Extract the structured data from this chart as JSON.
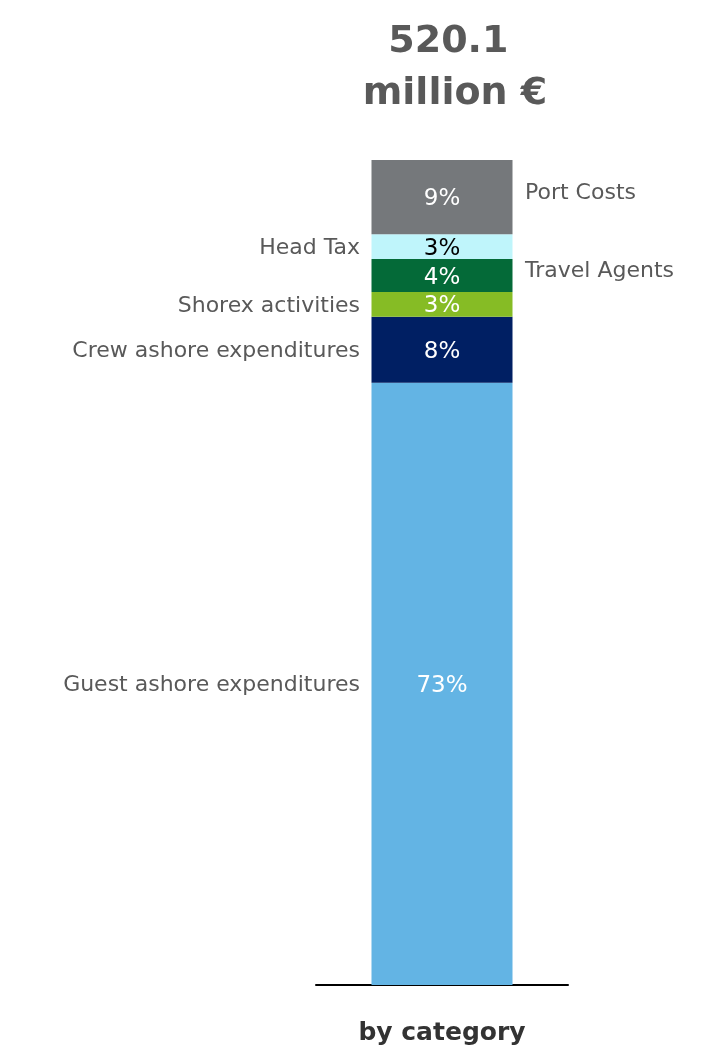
{
  "chart_data": {
    "type": "bar",
    "title": "520.1 million €",
    "categories": [
      "by category"
    ],
    "stacked": true,
    "legend": false,
    "tick_labels": "x",
    "series": [
      {
        "name": "Guest ashore expenditures",
        "color": "#63b4e4",
        "values": [
          73
        ],
        "value_labels": [
          "73%"
        ]
      },
      {
        "name": "Crew ashore expenditures",
        "color": "#001f63",
        "values": [
          8
        ],
        "value_labels": [
          "8%"
        ]
      },
      {
        "name": "Shorex activities",
        "color": "#86bc25",
        "values": [
          3
        ],
        "value_labels": [
          "3%"
        ]
      },
      {
        "name": "Travel Agents",
        "color": "#046a38",
        "values": [
          4
        ],
        "value_labels": [
          "4%"
        ]
      },
      {
        "name": "Head Tax",
        "color": "#bff5fb",
        "values": [
          3
        ],
        "value_labels": [
          "3%"
        ]
      },
      {
        "name": "Port Costs",
        "color": "#75787b",
        "values": [
          9
        ],
        "value_labels": [
          "9%"
        ]
      }
    ]
  }
}
